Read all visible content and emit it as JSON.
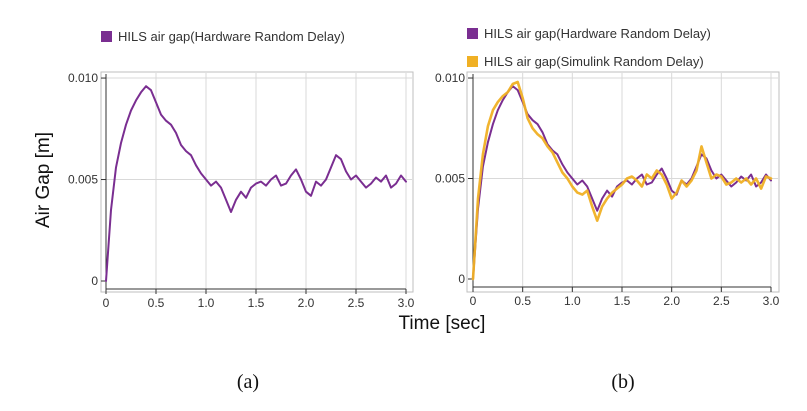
{
  "colors": {
    "hardware": "#7a2e91",
    "simulink": "#f0b024",
    "grid": "#d9d9d9",
    "axis": "#333333",
    "frame": "#bfbfbf"
  },
  "figure": {
    "ylabel": "Air Gap [m]",
    "xlabel": "Time [sec]"
  },
  "chart_data": [
    {
      "type": "line",
      "panel_label": "(a)",
      "legend_position": "top",
      "grid": true,
      "xlim": [
        0,
        3.0
      ],
      "ylim": [
        0,
        0.0102
      ],
      "xticks": [
        "0",
        "0.5",
        "1.0",
        "1.5",
        "2.0",
        "2.5",
        "3.0"
      ],
      "yticks": [
        "0",
        "0.005",
        "0.010"
      ],
      "series": [
        {
          "name": "HILS air gap(Hardware Random Delay)",
          "color": "#7a2e91",
          "x": [
            0,
            0.05,
            0.1,
            0.15,
            0.2,
            0.25,
            0.3,
            0.35,
            0.4,
            0.45,
            0.5,
            0.55,
            0.6,
            0.65,
            0.7,
            0.75,
            0.8,
            0.85,
            0.9,
            0.95,
            1.0,
            1.05,
            1.1,
            1.15,
            1.2,
            1.25,
            1.3,
            1.35,
            1.4,
            1.45,
            1.5,
            1.55,
            1.6,
            1.65,
            1.7,
            1.75,
            1.8,
            1.85,
            1.9,
            1.95,
            2.0,
            2.05,
            2.1,
            2.15,
            2.2,
            2.25,
            2.3,
            2.35,
            2.4,
            2.45,
            2.5,
            2.55,
            2.6,
            2.65,
            2.7,
            2.75,
            2.8,
            2.85,
            2.9,
            2.95,
            3.0
          ],
          "y": [
            0,
            0.0035,
            0.0056,
            0.0068,
            0.0077,
            0.0084,
            0.0089,
            0.0093,
            0.0096,
            0.0094,
            0.0088,
            0.0082,
            0.0079,
            0.0077,
            0.0073,
            0.0067,
            0.0064,
            0.0062,
            0.0057,
            0.0053,
            0.005,
            0.0047,
            0.0049,
            0.0046,
            0.004,
            0.0034,
            0.004,
            0.0044,
            0.0041,
            0.0046,
            0.0048,
            0.0049,
            0.0047,
            0.005,
            0.0052,
            0.0047,
            0.0048,
            0.0052,
            0.0055,
            0.005,
            0.0044,
            0.0042,
            0.0049,
            0.0047,
            0.005,
            0.0056,
            0.0062,
            0.006,
            0.0054,
            0.005,
            0.0052,
            0.0049,
            0.0046,
            0.0048,
            0.0051,
            0.0049,
            0.0052,
            0.0046,
            0.0048,
            0.0052,
            0.0049
          ]
        }
      ]
    },
    {
      "type": "line",
      "panel_label": "(b)",
      "legend_position": "top",
      "grid": true,
      "xlim": [
        0,
        3.0
      ],
      "ylim": [
        0,
        0.0102
      ],
      "xticks": [
        "0",
        "0.5",
        "1.0",
        "1.5",
        "2.0",
        "2.5",
        "3.0"
      ],
      "yticks": [
        "0",
        "0.005",
        "0.010"
      ],
      "series": [
        {
          "name": "HILS air gap(Hardware Random Delay)",
          "color": "#7a2e91",
          "x": [
            0,
            0.05,
            0.1,
            0.15,
            0.2,
            0.25,
            0.3,
            0.35,
            0.4,
            0.45,
            0.5,
            0.55,
            0.6,
            0.65,
            0.7,
            0.75,
            0.8,
            0.85,
            0.9,
            0.95,
            1.0,
            1.05,
            1.1,
            1.15,
            1.2,
            1.25,
            1.3,
            1.35,
            1.4,
            1.45,
            1.5,
            1.55,
            1.6,
            1.65,
            1.7,
            1.75,
            1.8,
            1.85,
            1.9,
            1.95,
            2.0,
            2.05,
            2.1,
            2.15,
            2.2,
            2.25,
            2.3,
            2.35,
            2.4,
            2.45,
            2.5,
            2.55,
            2.6,
            2.65,
            2.7,
            2.75,
            2.8,
            2.85,
            2.9,
            2.95,
            3.0
          ],
          "y": [
            0,
            0.0035,
            0.0056,
            0.0068,
            0.0077,
            0.0084,
            0.0089,
            0.0093,
            0.0096,
            0.0094,
            0.0088,
            0.0082,
            0.0079,
            0.0077,
            0.0073,
            0.0067,
            0.0064,
            0.0062,
            0.0057,
            0.0053,
            0.005,
            0.0047,
            0.0049,
            0.0046,
            0.004,
            0.0034,
            0.004,
            0.0044,
            0.0041,
            0.0046,
            0.0048,
            0.0049,
            0.0047,
            0.005,
            0.0052,
            0.0047,
            0.0048,
            0.0052,
            0.0055,
            0.005,
            0.0044,
            0.0042,
            0.0049,
            0.0047,
            0.005,
            0.0056,
            0.0062,
            0.006,
            0.0054,
            0.005,
            0.0052,
            0.0049,
            0.0046,
            0.0048,
            0.0051,
            0.0049,
            0.0052,
            0.0046,
            0.0048,
            0.0052,
            0.0049
          ]
        },
        {
          "name": "HILS air gap(Simulink Random Delay)",
          "color": "#f0b024",
          "x": [
            0,
            0.05,
            0.1,
            0.15,
            0.2,
            0.25,
            0.3,
            0.35,
            0.4,
            0.45,
            0.5,
            0.55,
            0.6,
            0.65,
            0.7,
            0.75,
            0.8,
            0.85,
            0.9,
            0.95,
            1.0,
            1.05,
            1.1,
            1.15,
            1.2,
            1.25,
            1.3,
            1.35,
            1.4,
            1.45,
            1.5,
            1.55,
            1.6,
            1.65,
            1.7,
            1.75,
            1.8,
            1.85,
            1.9,
            1.95,
            2.0,
            2.05,
            2.1,
            2.15,
            2.2,
            2.25,
            2.3,
            2.35,
            2.4,
            2.45,
            2.5,
            2.55,
            2.6,
            2.65,
            2.7,
            2.75,
            2.8,
            2.85,
            2.9,
            2.95,
            3.0
          ],
          "y": [
            0,
            0.004,
            0.0062,
            0.0076,
            0.0084,
            0.0088,
            0.0091,
            0.0093,
            0.0097,
            0.0098,
            0.009,
            0.008,
            0.0075,
            0.0072,
            0.007,
            0.0066,
            0.0063,
            0.0058,
            0.0053,
            0.005,
            0.0046,
            0.0043,
            0.0042,
            0.0044,
            0.0036,
            0.0029,
            0.0036,
            0.004,
            0.0043,
            0.0045,
            0.0047,
            0.005,
            0.0051,
            0.0049,
            0.0046,
            0.0052,
            0.005,
            0.0054,
            0.0052,
            0.0047,
            0.004,
            0.0043,
            0.0049,
            0.0046,
            0.0049,
            0.0054,
            0.0066,
            0.0058,
            0.005,
            0.0052,
            0.0051,
            0.0047,
            0.0048,
            0.005,
            0.0048,
            0.005,
            0.0047,
            0.005,
            0.0045,
            0.0051,
            0.005
          ]
        }
      ]
    }
  ]
}
